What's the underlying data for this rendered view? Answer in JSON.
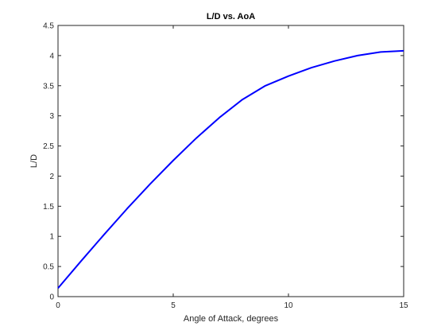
{
  "chart_data": {
    "type": "line",
    "title": "L/D vs. AoA",
    "xlabel": "Angle of Attack, degrees",
    "ylabel": "L/D",
    "xlim": [
      0,
      15
    ],
    "ylim": [
      0,
      4.5
    ],
    "xticks": [
      0,
      5,
      10,
      15
    ],
    "yticks": [
      0,
      0.5,
      1,
      1.5,
      2,
      2.5,
      3,
      3.5,
      4,
      4.5
    ],
    "xtick_labels": [
      "0",
      "5",
      "10",
      "15"
    ],
    "ytick_labels": [
      "0",
      "0.5",
      "1",
      "1.5",
      "2",
      "2.5",
      "3",
      "3.5",
      "4",
      "4.5"
    ],
    "grid": false,
    "line_color": "#0000ff",
    "series": [
      {
        "x": [
          0,
          1,
          2,
          3,
          4,
          5,
          6,
          7,
          8,
          9,
          10,
          11,
          12,
          13,
          14,
          15
        ],
        "y": [
          0.14,
          0.59,
          1.03,
          1.46,
          1.87,
          2.26,
          2.63,
          2.97,
          3.27,
          3.5,
          3.66,
          3.8,
          3.91,
          4.0,
          4.06,
          4.08
        ]
      }
    ]
  }
}
